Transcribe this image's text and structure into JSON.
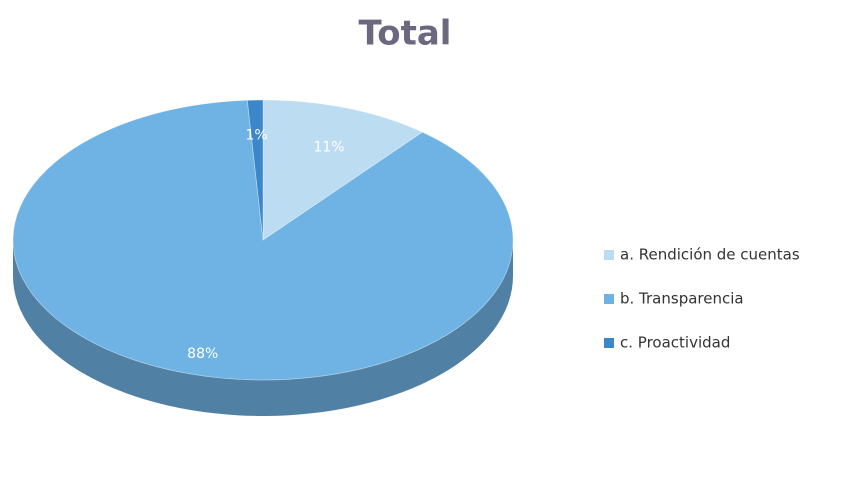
{
  "chart_data": {
    "type": "pie",
    "title": "Total",
    "categories": [
      "a. Rendición de cuentas",
      "b. Transparencia",
      "c. Proactividad"
    ],
    "values": [
      11,
      88,
      1
    ],
    "value_labels": [
      "11%",
      "88%",
      "1%"
    ],
    "colors": [
      "#bcdcf2",
      "#6fb2e4",
      "#3b87c9"
    ],
    "legend": "right"
  }
}
